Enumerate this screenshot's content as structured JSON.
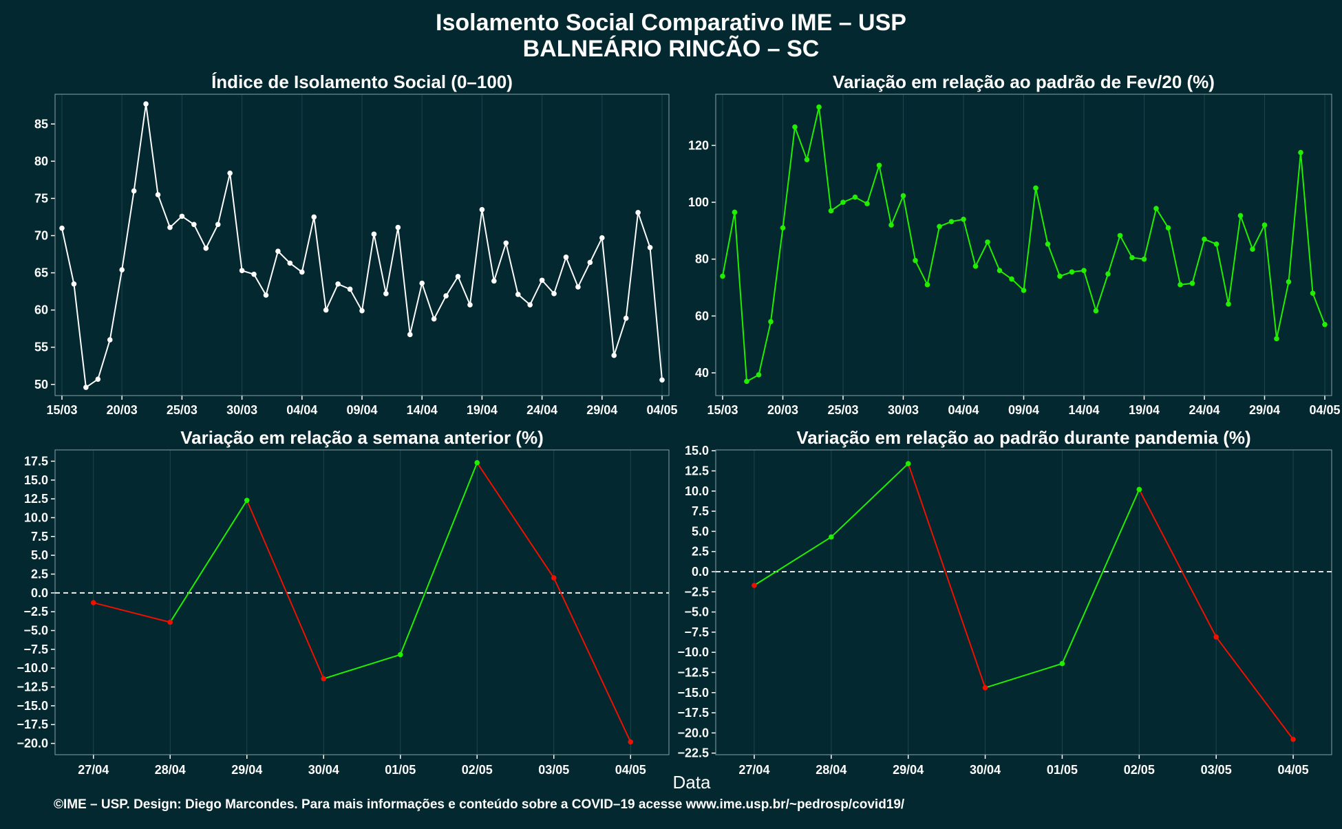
{
  "title_line1": "Isolamento Social Comparativo IME – USP",
  "title_line2": "BALNEÁRIO RINCÃO – SC",
  "xlabel": "Data",
  "footer": "©IME – USP. Design: Diego Marcondes. Para mais informações e conteúdo sobre a COVID–19 acesse www.ime.usp.br/~pedrosp/covid19/",
  "colors": {
    "background": "#03282f",
    "white": "#ffffff",
    "green": "#22ee00",
    "red": "#ee1100",
    "grid": "#1d454d",
    "zero_line": "#ffffff"
  },
  "chart_data": [
    {
      "type": "line",
      "title": "Índice de Isolamento Social (0–100)",
      "x_tick_labels": [
        "15/03",
        "20/03",
        "25/03",
        "30/03",
        "04/04",
        "09/04",
        "14/04",
        "19/04",
        "24/04",
        "29/04",
        "04/05"
      ],
      "ylim": [
        48.5,
        89
      ],
      "yticks": [
        50,
        55,
        60,
        65,
        70,
        75,
        80,
        85
      ],
      "grid": true,
      "series": [
        {
          "color": "#ffffff",
          "values": [
            71.0,
            63.5,
            49.6,
            50.7,
            56.0,
            65.4,
            76.0,
            87.7,
            75.5,
            71.1,
            72.6,
            71.5,
            68.3,
            71.5,
            78.4,
            65.3,
            64.8,
            62.0,
            67.9,
            66.3,
            65.1,
            72.5,
            60.0,
            63.5,
            62.8,
            59.9,
            70.2,
            62.2,
            71.1,
            56.7,
            63.6,
            58.8,
            61.9,
            64.5,
            60.7,
            73.5,
            63.9,
            69.0,
            62.1,
            60.7,
            64.0,
            62.2,
            67.1,
            63.1,
            66.4,
            69.7,
            53.9,
            58.9,
            73.1,
            68.4,
            50.6
          ]
        }
      ]
    },
    {
      "type": "line",
      "title": "Variação em relação ao padrão de Fev/20 (%)",
      "x_tick_labels": [
        "15/03",
        "20/03",
        "25/03",
        "30/03",
        "04/04",
        "09/04",
        "14/04",
        "19/04",
        "24/04",
        "29/04",
        "04/05"
      ],
      "ylim": [
        32,
        138
      ],
      "yticks": [
        40,
        60,
        80,
        100,
        120
      ],
      "grid": true,
      "series": [
        {
          "color": "#22ee00",
          "values": [
            74,
            96.5,
            37,
            39.3,
            58,
            91,
            126.5,
            115,
            133.5,
            97,
            100,
            101.8,
            99.5,
            113,
            92,
            102.3,
            79.5,
            71,
            91.5,
            93.2,
            94,
            77.5,
            86,
            76,
            73,
            69,
            105,
            85.3,
            74,
            75.5,
            76,
            61.8,
            74.8,
            88.3,
            80.5,
            80,
            97.8,
            91,
            71,
            71.5,
            87,
            85.3,
            64.2,
            95.3,
            83.5,
            92,
            52,
            72,
            117.5,
            68,
            57
          ]
        }
      ]
    },
    {
      "type": "line",
      "title": "Variação em relação a semana anterior (%)",
      "categories": [
        "27/04",
        "28/04",
        "29/04",
        "30/04",
        "01/05",
        "02/05",
        "03/05",
        "04/05"
      ],
      "values": [
        -1.3,
        -3.9,
        12.3,
        -11.4,
        -8.2,
        17.3,
        2.0,
        -19.8
      ],
      "ylim": [
        -21.5,
        19
      ],
      "yticks": [
        -20,
        -17.5,
        -15,
        -12.5,
        -10,
        -7.5,
        -5,
        -2.5,
        0,
        2.5,
        5,
        7.5,
        10,
        12.5,
        15,
        17.5
      ],
      "ytick_labels": [
        "−20.0",
        "−17.5",
        "−15.0",
        "−12.5",
        "−10.0",
        "−7.5",
        "−5.0",
        "−2.5",
        "0.0",
        "2.5",
        "5.0",
        "7.5",
        "10.0",
        "12.5",
        "15.0",
        "17.5"
      ],
      "reference_line": 0,
      "up_color": "#22ee00",
      "down_color": "#ee1100",
      "grid": true
    },
    {
      "type": "line",
      "title": "Variação em relação ao padrão durante pandemia (%)",
      "categories": [
        "27/04",
        "28/04",
        "29/04",
        "30/04",
        "01/05",
        "02/05",
        "03/05",
        "04/05"
      ],
      "values": [
        -1.7,
        4.3,
        13.4,
        -14.4,
        -11.4,
        10.2,
        -8.1,
        -20.8
      ],
      "ylim": [
        -22.7,
        15.1
      ],
      "yticks": [
        -22.5,
        -20,
        -17.5,
        -15,
        -12.5,
        -10,
        -7.5,
        -5,
        -2.5,
        0,
        2.5,
        5,
        7.5,
        10,
        12.5,
        15
      ],
      "ytick_labels": [
        "−22.5",
        "−20.0",
        "−17.5",
        "−15.0",
        "−12.5",
        "−10.0",
        "−7.5",
        "−5.0",
        "−2.5",
        "0.0",
        "2.5",
        "5.0",
        "7.5",
        "10.0",
        "12.5",
        "15.0"
      ],
      "reference_line": 0,
      "up_color": "#22ee00",
      "down_color": "#ee1100",
      "grid": true
    }
  ]
}
